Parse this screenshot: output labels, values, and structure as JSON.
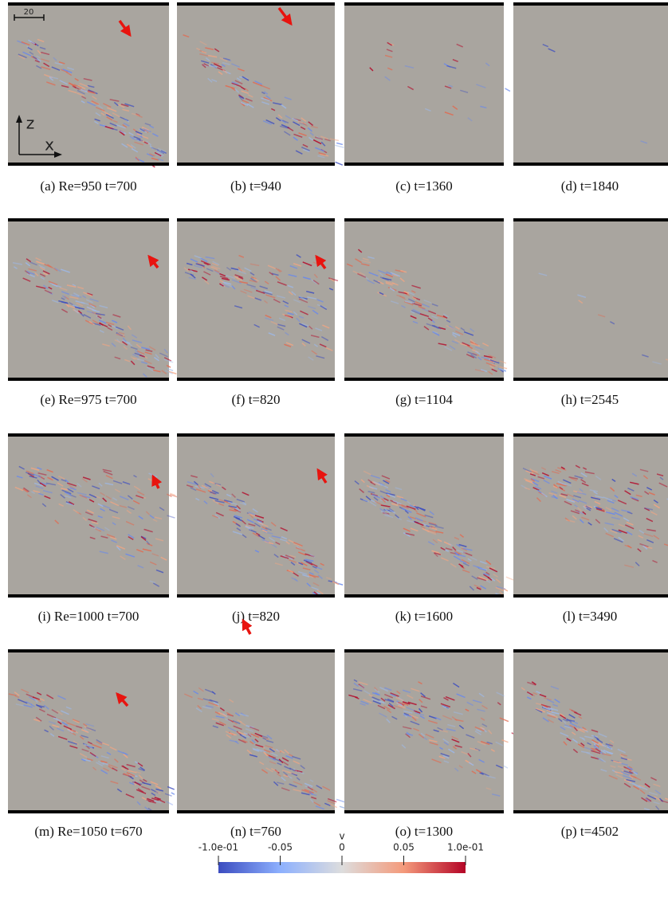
{
  "figure": {
    "panels": [
      {
        "caption": "(a) Re=950 t=700"
      },
      {
        "caption": "(b) t=940"
      },
      {
        "caption": "(c) t=1360"
      },
      {
        "caption": "(d) t=1840"
      },
      {
        "caption": "(e) Re=975 t=700"
      },
      {
        "caption": "(f) t=820"
      },
      {
        "caption": "(g) t=1104"
      },
      {
        "caption": "(h) t=2545"
      },
      {
        "caption": "(i) Re=1000 t=700"
      },
      {
        "caption": "(j) t=820"
      },
      {
        "caption": "(k) t=1600"
      },
      {
        "caption": "(l) t=3490"
      },
      {
        "caption": "(m) Re=1050 t=670"
      },
      {
        "caption": "(n) t=760"
      },
      {
        "caption": "(o) t=1300"
      },
      {
        "caption": "(p) t=4502"
      }
    ],
    "scale_bar": "20",
    "axis_z": "z",
    "axis_x": "x",
    "colorbar": {
      "title": "v",
      "ticks": [
        {
          "value": -0.1,
          "label": "-1.0e-01"
        },
        {
          "value": -0.05,
          "label": "-0.05"
        },
        {
          "value": 0,
          "label": "0"
        },
        {
          "value": 0.05,
          "label": "0.05"
        },
        {
          "value": 0.1,
          "label": "1.0e-01"
        }
      ]
    }
  }
}
